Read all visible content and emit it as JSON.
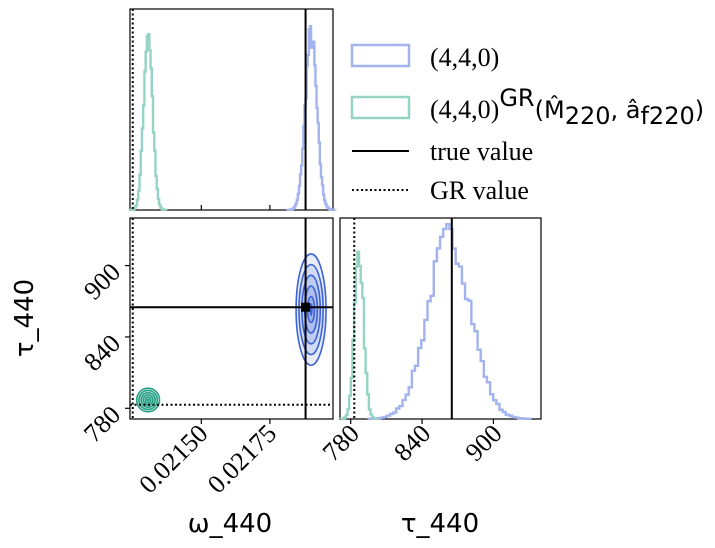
{
  "chart_data": {
    "type": "corner",
    "parameters": [
      "ω_440",
      "τ_440"
    ],
    "axis_labels": {
      "x_omega": "ω_440",
      "x_tau": "τ_440",
      "y_tau": "τ_440"
    },
    "omega_ticks": [
      {
        "value": 0.0215,
        "label": "0.02150"
      },
      {
        "value": 0.02175,
        "label": "0.02175"
      }
    ],
    "omega_range": [
      0.02124,
      0.02198
    ],
    "tau_ticks": [
      {
        "value": 780,
        "label": "780"
      },
      {
        "value": 840,
        "label": "840"
      },
      {
        "value": 900,
        "label": "900"
      }
    ],
    "tau_range": [
      771,
      940
    ],
    "true_value": {
      "omega": 0.02188,
      "tau": 865
    },
    "gr_value": {
      "omega": 0.02125,
      "tau": 783
    },
    "series": [
      {
        "name": "(4,4,0)",
        "color": "#a3b3ee",
        "contour_color": "#3d63d6",
        "omega_mean": 0.0219,
        "omega_sd": 2.1e-05,
        "tau_mean": 863,
        "tau_sd": 18,
        "hist_peak": 1.0
      },
      {
        "name": "(4,4,0)^GR",
        "color": "#96d3c5",
        "contour_color": "#27a086",
        "omega_mean": 0.021306,
        "omega_sd": 1.6e-05,
        "tau_mean": 787,
        "tau_sd": 3.8,
        "hist_peak": 1.0
      }
    ],
    "legend": {
      "placement": "top-right",
      "entries": [
        {
          "label": "(4,4,0)",
          "style": "patch-blue"
        },
        {
          "label_prefix": "(4,4,0)",
          "label_sup": "GR",
          "label_math": "(M̂",
          "label_math_sub1": "220",
          "label_math2": ", â",
          "label_math_sub2": "f220",
          "label_math3": ")",
          "style": "patch-green"
        },
        {
          "label": "true value",
          "style": "solid-line"
        },
        {
          "label": "GR value",
          "style": "dotted-line"
        }
      ]
    }
  }
}
